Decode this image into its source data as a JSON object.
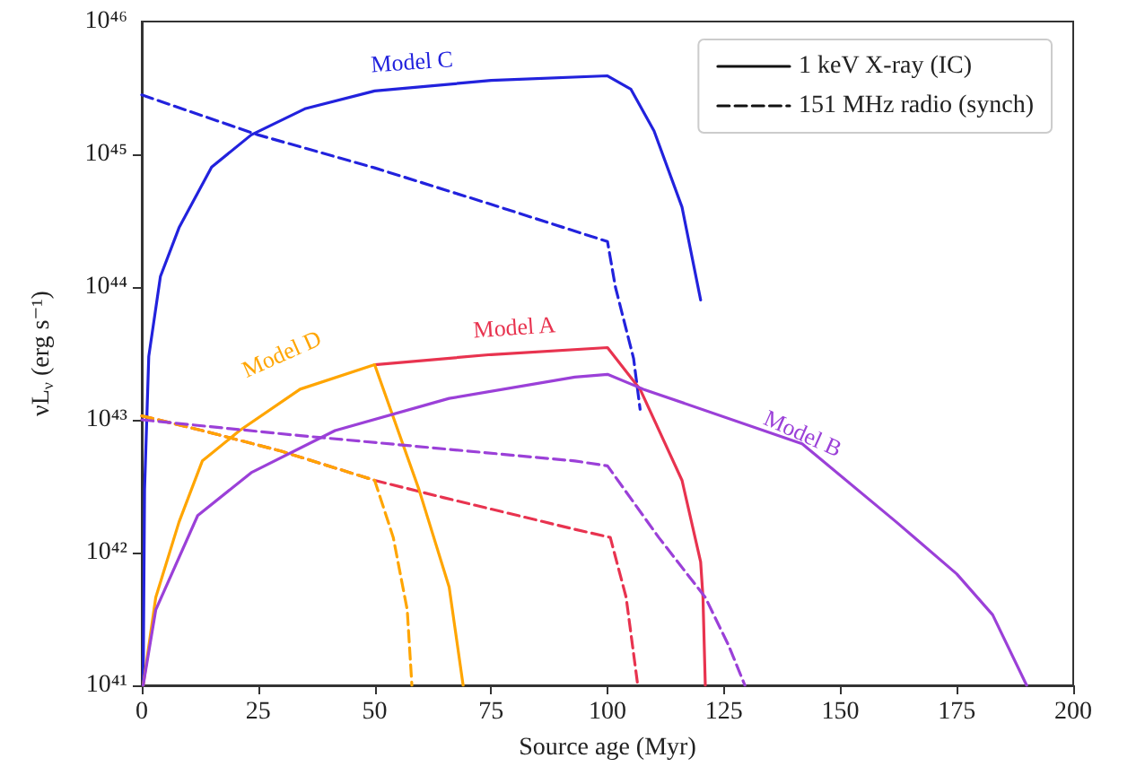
{
  "chart_data": {
    "type": "line",
    "xlabel": "Source age (Myr)",
    "ylabel": "νL$_{ν}$ (erg s⁻¹)",
    "log": "y",
    "xlim": [
      0,
      200
    ],
    "xticks": [
      0,
      25,
      50,
      75,
      100,
      125,
      150,
      175,
      200
    ],
    "ylim": [
      1e+41,
      1e+46
    ],
    "yticks": [
      {
        "value": 1e+41,
        "label": "10⁴¹"
      },
      {
        "value": 1e+42,
        "label": "10⁴²"
      },
      {
        "value": 1e+43,
        "label": "10⁴³"
      },
      {
        "value": 1e+44,
        "label": "10⁴⁴"
      },
      {
        "value": 1e+45,
        "label": "10⁴⁵"
      },
      {
        "value": 1e+46,
        "label": "10⁴⁶"
      }
    ],
    "grid": false,
    "legend": "top right",
    "marker": "none",
    "series": [
      {
        "name": "1 keV X-ray (IC)",
        "color": "#2222dd",
        "line_style": "solid",
        "x": [
          0.3,
          0.6,
          1.5,
          4,
          8,
          15,
          23.5,
          35,
          50,
          75,
          100,
          105,
          110,
          116,
          120
        ],
        "values": [
          1e+41,
          3e+42,
          3e+43,
          1.2e+44,
          2.8e+44,
          8e+44,
          1.4e+45,
          2.2e+45,
          3e+45,
          3.6e+45,
          3.9e+45,
          3.1e+45,
          1.5e+45,
          4e+44,
          8e+43
        ]
      },
      {
        "name": "151 MHz radio (synch)",
        "color": "#2222dd",
        "line_style": "dashed",
        "x": [
          0,
          25,
          50,
          75,
          100,
          101.7,
          105.6,
          107
        ],
        "values": [
          2.8e+45,
          1.4e+45,
          7.9e+44,
          4.2e+44,
          2.2e+44,
          1e+44,
          2.9e+43,
          1.2e+43
        ]
      },
      {
        "color": "#e8334f",
        "line_style": "solid",
        "x": [
          50,
          75,
          100,
          107,
          116,
          120,
          120.5,
          121
        ],
        "values": [
          2.6e+43,
          3.1e+43,
          3.5e+43,
          1.7e+43,
          3.5e+42,
          8.5e+41,
          4.6e+41,
          1e+41
        ]
      },
      {
        "color": "#e8334f",
        "line_style": "dashed",
        "x": [
          0,
          13,
          30,
          50,
          64.7,
          92.9,
          100.6,
          104,
          106.5
        ],
        "values": [
          1.07e+43,
          8.3e+42,
          5.8e+42,
          3.5e+42,
          2.6e+42,
          1.5e+42,
          1.3e+42,
          4.6e+41,
          1e+41
        ]
      },
      {
        "color": "#ffa500",
        "line_style": "solid",
        "x": [
          0.3,
          3,
          8,
          13,
          21,
          34,
          50,
          59.5,
          66,
          69
        ],
        "values": [
          1e+41,
          4.6e+41,
          1.7e+42,
          4.9e+42,
          8.3e+42,
          1.7e+43,
          2.6e+43,
          3e+42,
          5.5e+41,
          1e+41
        ]
      },
      {
        "color": "#ffa500",
        "line_style": "dashed",
        "x": [
          0,
          13,
          30,
          50,
          54,
          57,
          58
        ],
        "values": [
          1.07e+43,
          8.3e+42,
          5.8e+42,
          3.5e+42,
          1.3e+42,
          3.7e+41,
          1e+41
        ]
      },
      {
        "color": "#9b40d8",
        "line_style": "solid",
        "x": [
          0.3,
          3,
          12,
          23.5,
          41.5,
          66,
          93,
          100,
          107.7,
          141.8,
          162,
          175,
          182.7,
          190
        ],
        "values": [
          1e+41,
          3.7e+41,
          1.9e+42,
          4e+42,
          8.3e+42,
          1.45e+43,
          2.1e+43,
          2.2e+43,
          1.7e+43,
          6.6e+42,
          1.7e+42,
          6.9e+41,
          3.4e+41,
          1e+41
        ]
      },
      {
        "color": "#9b40d8",
        "line_style": "dashed",
        "x": [
          0,
          34,
          93,
          100,
          111,
          121,
          126,
          129.5
        ],
        "values": [
          1e+43,
          7.6e+42,
          4.9e+42,
          4.5e+42,
          1.3e+42,
          4.6e+41,
          2e+41,
          1e+41
        ]
      }
    ],
    "annotations": [
      "Model C",
      "Model A",
      "Model D",
      "Model B"
    ]
  }
}
